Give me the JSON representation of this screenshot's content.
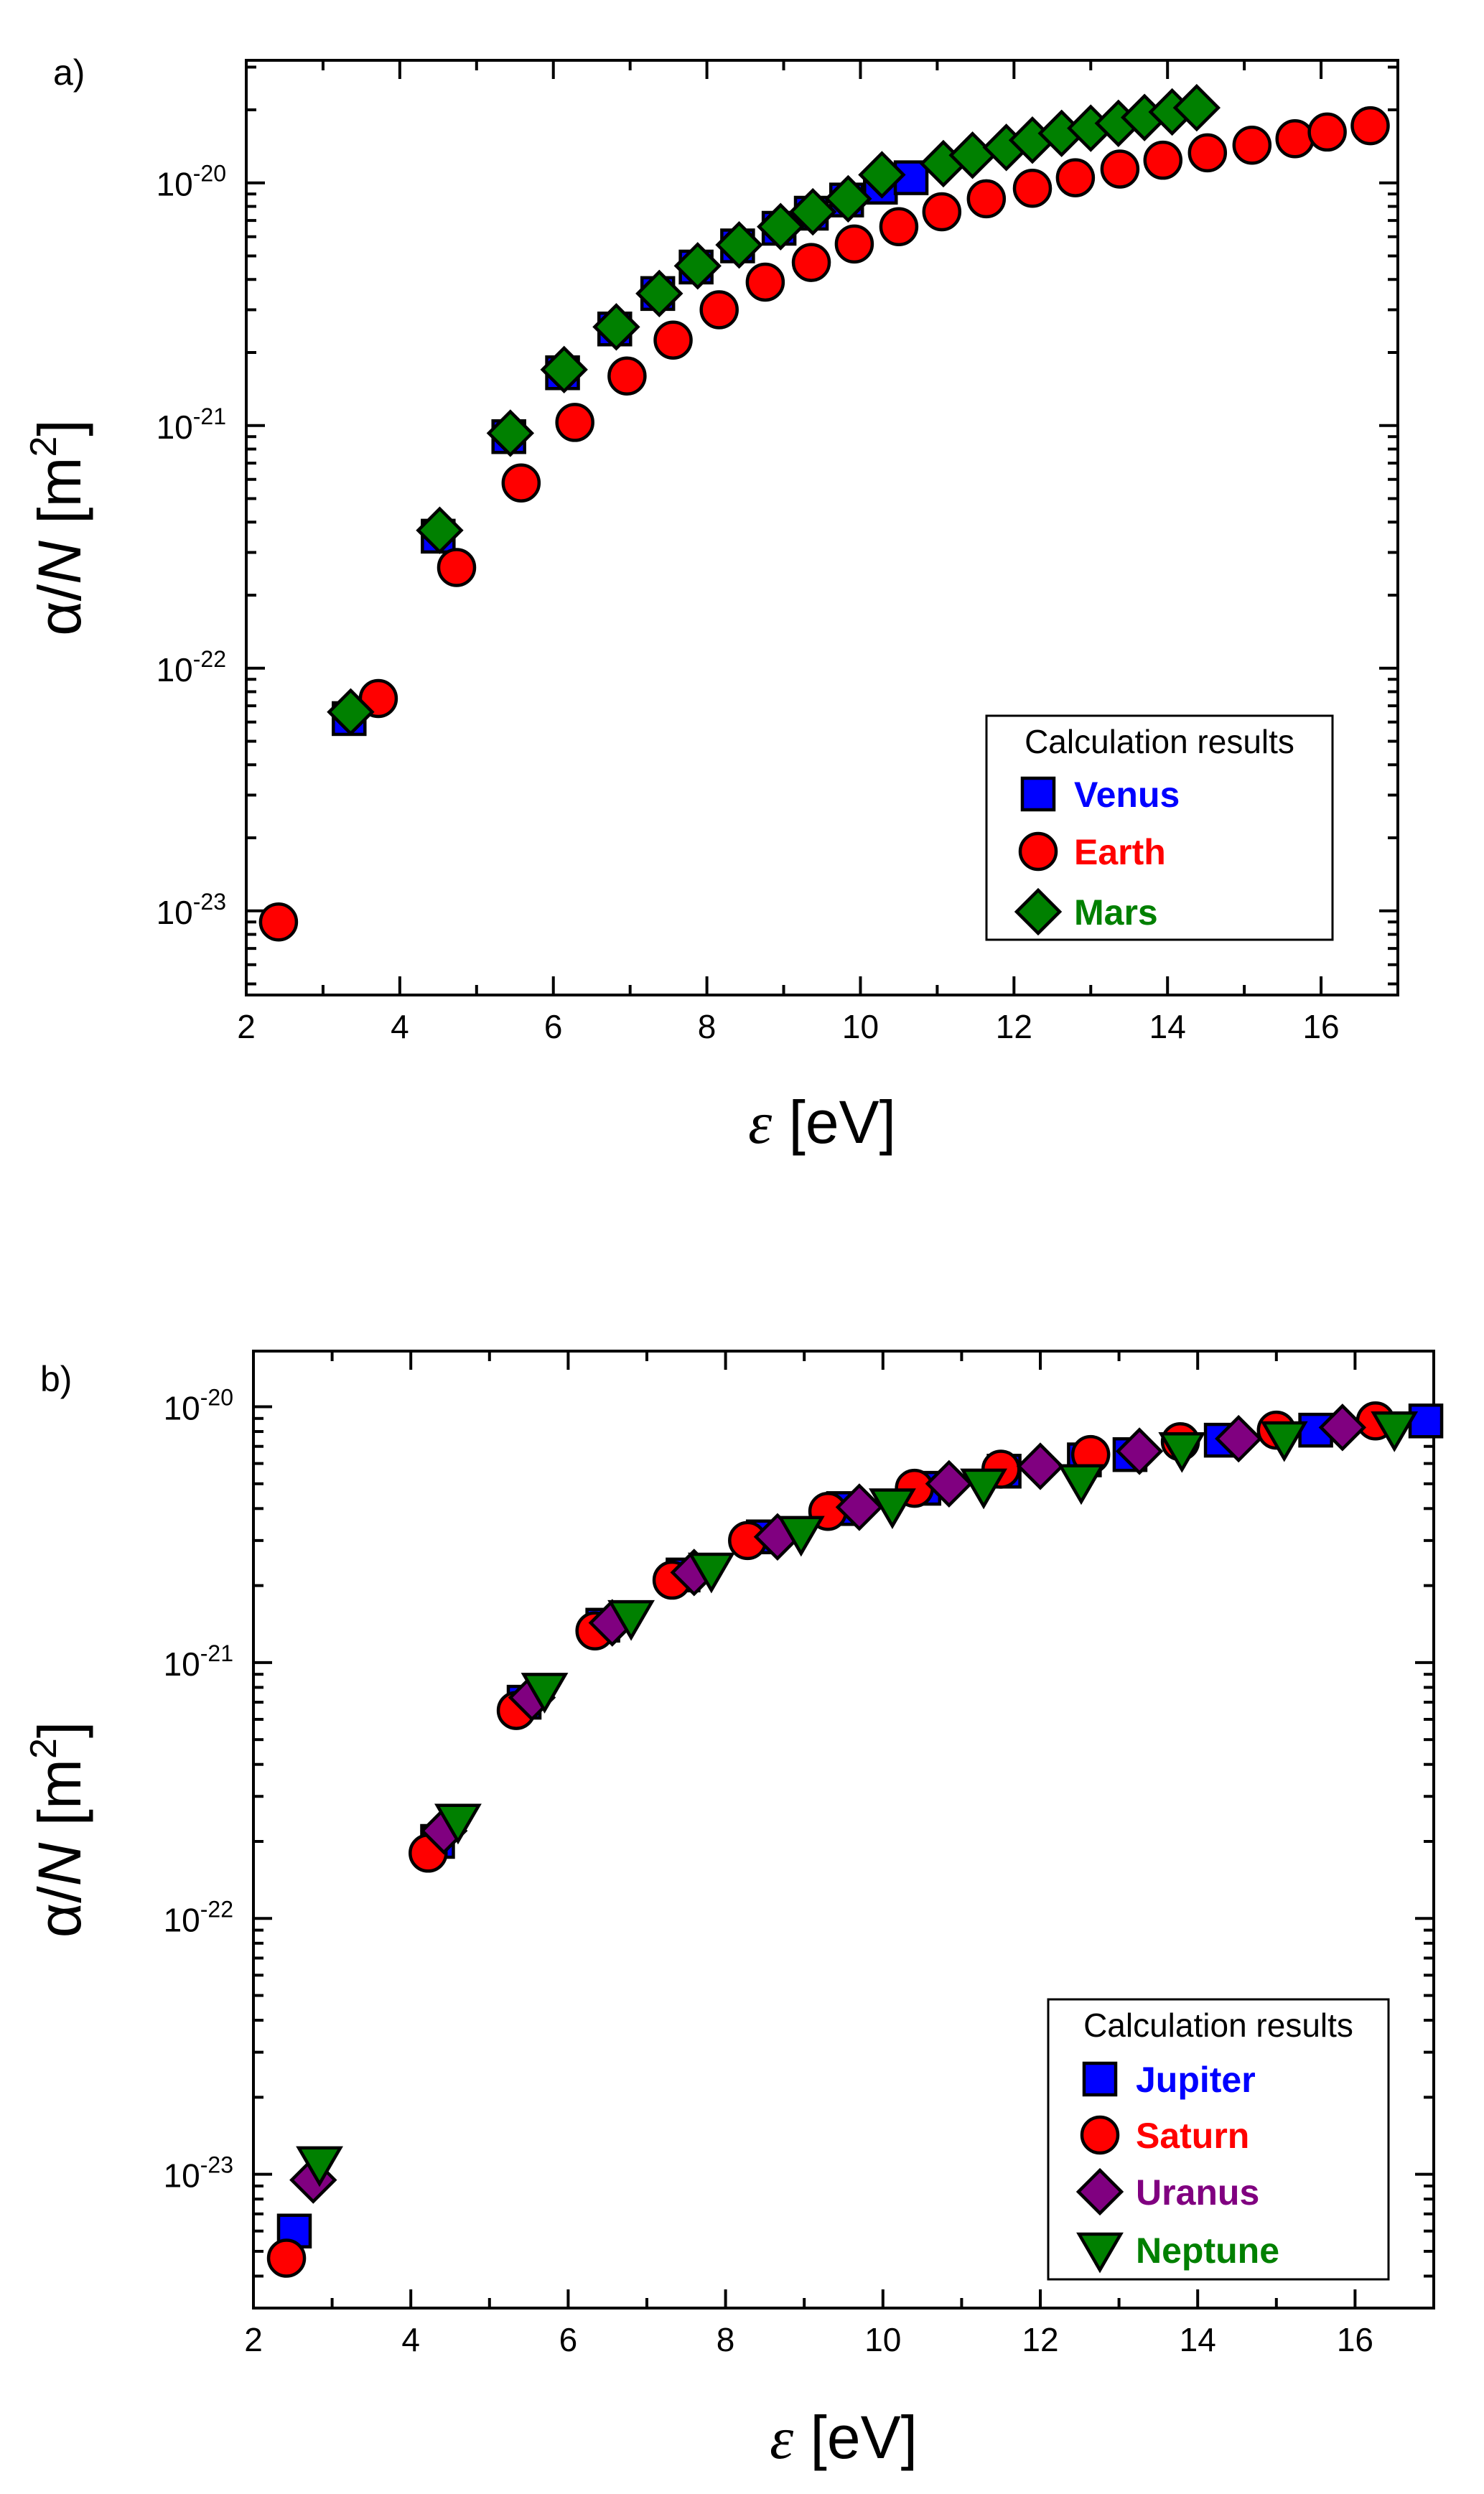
{
  "chart_data": [
    {
      "panel_label": "a)",
      "type": "scatter",
      "x_scale": "linear",
      "y_scale": "log",
      "xlabel_symbol": "ε",
      "xlabel_unit": " [eV]",
      "ylabel_symbol": "α/",
      "ylabel_var": "N",
      "ylabel_unit": " [m",
      "ylabel_unit_exp": "2",
      "ylabel_close": "]",
      "xlim": [
        2,
        17
      ],
      "ylim": [
        4.5e-24,
        3.2e-20
      ],
      "x_ticks": [
        2,
        4,
        6,
        8,
        10,
        12,
        14,
        16
      ],
      "y_ticks": [
        {
          "value": 1e-20,
          "base": "10",
          "exp": "-20"
        },
        {
          "value": 1e-21,
          "base": "10",
          "exp": "-21"
        },
        {
          "value": 1e-22,
          "base": "10",
          "exp": "-22"
        },
        {
          "value": 1e-23,
          "base": "10",
          "exp": "-23"
        }
      ],
      "legend": {
        "title": "Calculation results",
        "placement": "bottom-right"
      },
      "series": [
        {
          "name": "Venus",
          "marker": "square",
          "color": "#0000ff",
          "x": [
            3.34,
            4.5,
            5.42,
            6.12,
            6.8,
            7.36,
            7.86,
            8.4,
            8.94,
            9.36,
            9.82,
            10.26,
            10.66
          ],
          "y": [
            6.2e-23,
            3.5e-22,
            9e-22,
            1.65e-21,
            2.5e-21,
            3.5e-21,
            4.5e-21,
            5.5e-21,
            6.5e-21,
            7.5e-21,
            8.5e-21,
            9.6e-21,
            1.05e-20
          ]
        },
        {
          "name": "Earth",
          "marker": "circle",
          "color": "#ff0000",
          "x": [
            2.42,
            3.72,
            4.74,
            5.58,
            6.28,
            6.96,
            7.56,
            8.16,
            8.76,
            9.36,
            9.92,
            10.5,
            11.06,
            11.64,
            12.24,
            12.8,
            13.38,
            13.94,
            14.52,
            15.1,
            15.66,
            16.08,
            16.64
          ],
          "y": [
            9e-24,
            7.5e-23,
            2.6e-22,
            5.8e-22,
            1.03e-21,
            1.6e-21,
            2.25e-21,
            3e-21,
            3.9e-21,
            4.7e-21,
            5.6e-21,
            6.6e-21,
            7.6e-21,
            8.6e-21,
            9.5e-21,
            1.05e-20,
            1.14e-20,
            1.24e-20,
            1.33e-20,
            1.43e-20,
            1.52e-20,
            1.62e-20,
            1.72e-20
          ]
        },
        {
          "name": "Mars",
          "marker": "diamond",
          "color": "#008000",
          "x": [
            3.36,
            4.52,
            5.44,
            6.14,
            6.82,
            7.38,
            7.88,
            8.42,
            8.96,
            9.38,
            9.84,
            10.28,
            11.08,
            11.46,
            11.9,
            12.24,
            12.62,
            13.0,
            13.36,
            13.7,
            14.06,
            14.38
          ],
          "y": [
            6.6e-23,
            3.7e-22,
            9.3e-22,
            1.7e-21,
            2.55e-21,
            3.5e-21,
            4.55e-21,
            5.55e-21,
            6.6e-21,
            7.6e-21,
            8.6e-21,
            1.08e-20,
            1.2e-20,
            1.3e-20,
            1.4e-20,
            1.5e-20,
            1.6e-20,
            1.68e-20,
            1.76e-20,
            1.86e-20,
            1.96e-20,
            2.04e-20
          ]
        }
      ]
    },
    {
      "panel_label": "b)",
      "type": "scatter",
      "x_scale": "linear",
      "y_scale": "log",
      "xlabel_symbol": "ε",
      "xlabel_unit": " [eV]",
      "ylabel_symbol": "α/",
      "ylabel_var": "N",
      "ylabel_unit": " [m",
      "ylabel_unit_exp": "2",
      "ylabel_close": "]",
      "xlim": [
        2,
        17
      ],
      "ylim": [
        3e-24,
        1.65e-20
      ],
      "x_ticks": [
        2,
        4,
        6,
        8,
        10,
        12,
        14,
        16
      ],
      "y_ticks": [
        {
          "value": 1e-20,
          "base": "10",
          "exp": "-20"
        },
        {
          "value": 1e-21,
          "base": "10",
          "exp": "-21"
        },
        {
          "value": 1e-22,
          "base": "10",
          "exp": "-22"
        },
        {
          "value": 1e-23,
          "base": "10",
          "exp": "-23"
        }
      ],
      "legend": {
        "title": "Calculation results",
        "placement": "bottom-right"
      },
      "series": [
        {
          "name": "Jupiter",
          "marker": "square",
          "color": "#0000ff",
          "x": [
            2.52,
            4.34,
            5.44,
            6.44,
            7.46,
            8.48,
            9.5,
            10.52,
            11.54,
            12.56,
            13.14,
            14.3,
            15.5,
            16.9
          ],
          "y": [
            6e-24,
            2e-22,
            7e-22,
            1.4e-21,
            2.2e-21,
            3.1e-21,
            4e-21,
            4.8e-21,
            5.6e-21,
            6.2e-21,
            6.5e-21,
            7.4e-21,
            8.1e-21,
            8.8e-21
          ]
        },
        {
          "name": "Saturn",
          "marker": "circle",
          "color": "#ff0000",
          "x": [
            2.42,
            4.22,
            5.34,
            6.34,
            7.32,
            8.28,
            9.3,
            10.4,
            11.5,
            12.64,
            13.78,
            15.0,
            16.26
          ],
          "y": [
            4.7e-24,
            1.8e-22,
            6.5e-22,
            1.33e-21,
            2.1e-21,
            3e-21,
            3.9e-21,
            4.8e-21,
            5.7e-21,
            6.5e-21,
            7.3e-21,
            8.1e-21,
            8.8e-21
          ]
        },
        {
          "name": "Uranus",
          "marker": "diamond",
          "color": "#800080",
          "x": [
            2.76,
            4.42,
            5.54,
            6.56,
            7.6,
            8.66,
            9.7,
            10.84,
            12.0,
            13.26,
            14.52,
            15.84
          ],
          "y": [
            9.5e-24,
            2.2e-22,
            7.3e-22,
            1.43e-21,
            2.25e-21,
            3.1e-21,
            4.05e-21,
            5e-21,
            5.85e-21,
            6.7e-21,
            7.5e-21,
            8.3e-21
          ]
        },
        {
          "name": "Neptune",
          "marker": "triangle-down",
          "color": "#008000",
          "x": [
            2.84,
            4.6,
            5.7,
            6.8,
            7.82,
            8.96,
            10.12,
            11.28,
            12.52,
            13.8,
            15.1,
            16.5
          ],
          "y": [
            1.1e-23,
            2.4e-22,
            7.8e-22,
            1.5e-21,
            2.3e-21,
            3.2e-21,
            4.1e-21,
            4.9e-21,
            5.1e-21,
            6.8e-21,
            7.5e-21,
            8.2e-21
          ]
        }
      ]
    }
  ]
}
